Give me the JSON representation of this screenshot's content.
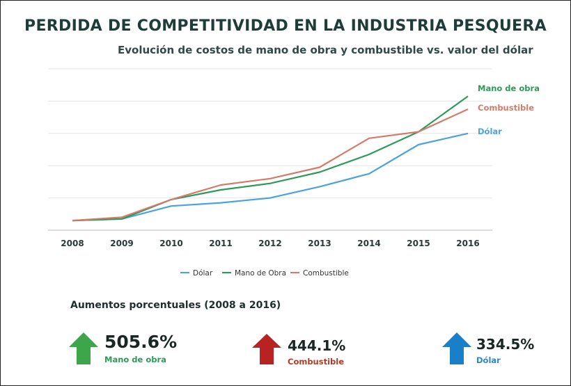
{
  "colors": {
    "dolar": "#4aa3df",
    "mano": "#2e9a5a",
    "combustible": "#d47b6a",
    "arrow_green": "#3ea64a",
    "arrow_red": "#b82222",
    "arrow_blue": "#1a7fc9"
  },
  "chart_data": {
    "type": "line",
    "title": "PERDIDA DE COMPETITIVIDAD EN LA INDUSTRIA PESQUERA",
    "subtitle": "Evolución de costos de mano de obra y combustible vs. valor del dólar",
    "categories": [
      "2008",
      "2009",
      "2010",
      "2011",
      "2012",
      "2013",
      "2014",
      "2015",
      "2016"
    ],
    "ylim": [
      0,
      5
    ],
    "grid": true,
    "series": [
      {
        "key": "dolar",
        "name": "Dólar",
        "end_label": "Dólar",
        "color": "#4aa3df",
        "values": [
          0.3,
          0.35,
          0.75,
          0.85,
          1.0,
          1.35,
          1.75,
          2.65,
          3.0
        ]
      },
      {
        "key": "mano",
        "name": "Mano de Obra",
        "end_label": "Mano de obra",
        "color": "#2e9a5a",
        "values": [
          0.3,
          0.35,
          0.95,
          1.25,
          1.45,
          1.8,
          2.35,
          3.05,
          4.15
        ]
      },
      {
        "key": "combustible",
        "name": "Combustible",
        "end_label": "Combustible",
        "color": "#d47b6a",
        "values": [
          0.3,
          0.4,
          0.95,
          1.4,
          1.6,
          1.95,
          2.85,
          3.05,
          3.75
        ]
      }
    ],
    "legend_position": "bottom-center"
  },
  "aumentos": {
    "heading": "Aumentos porcentuales (2008 a 2016)",
    "items": [
      {
        "value": "505.6%",
        "label": "Mano de obra",
        "direction": "up"
      },
      {
        "value": "444.1%",
        "label": "Combustible",
        "direction": "up"
      },
      {
        "value": "334.5%",
        "label": "Dólar",
        "direction": "up"
      }
    ]
  }
}
